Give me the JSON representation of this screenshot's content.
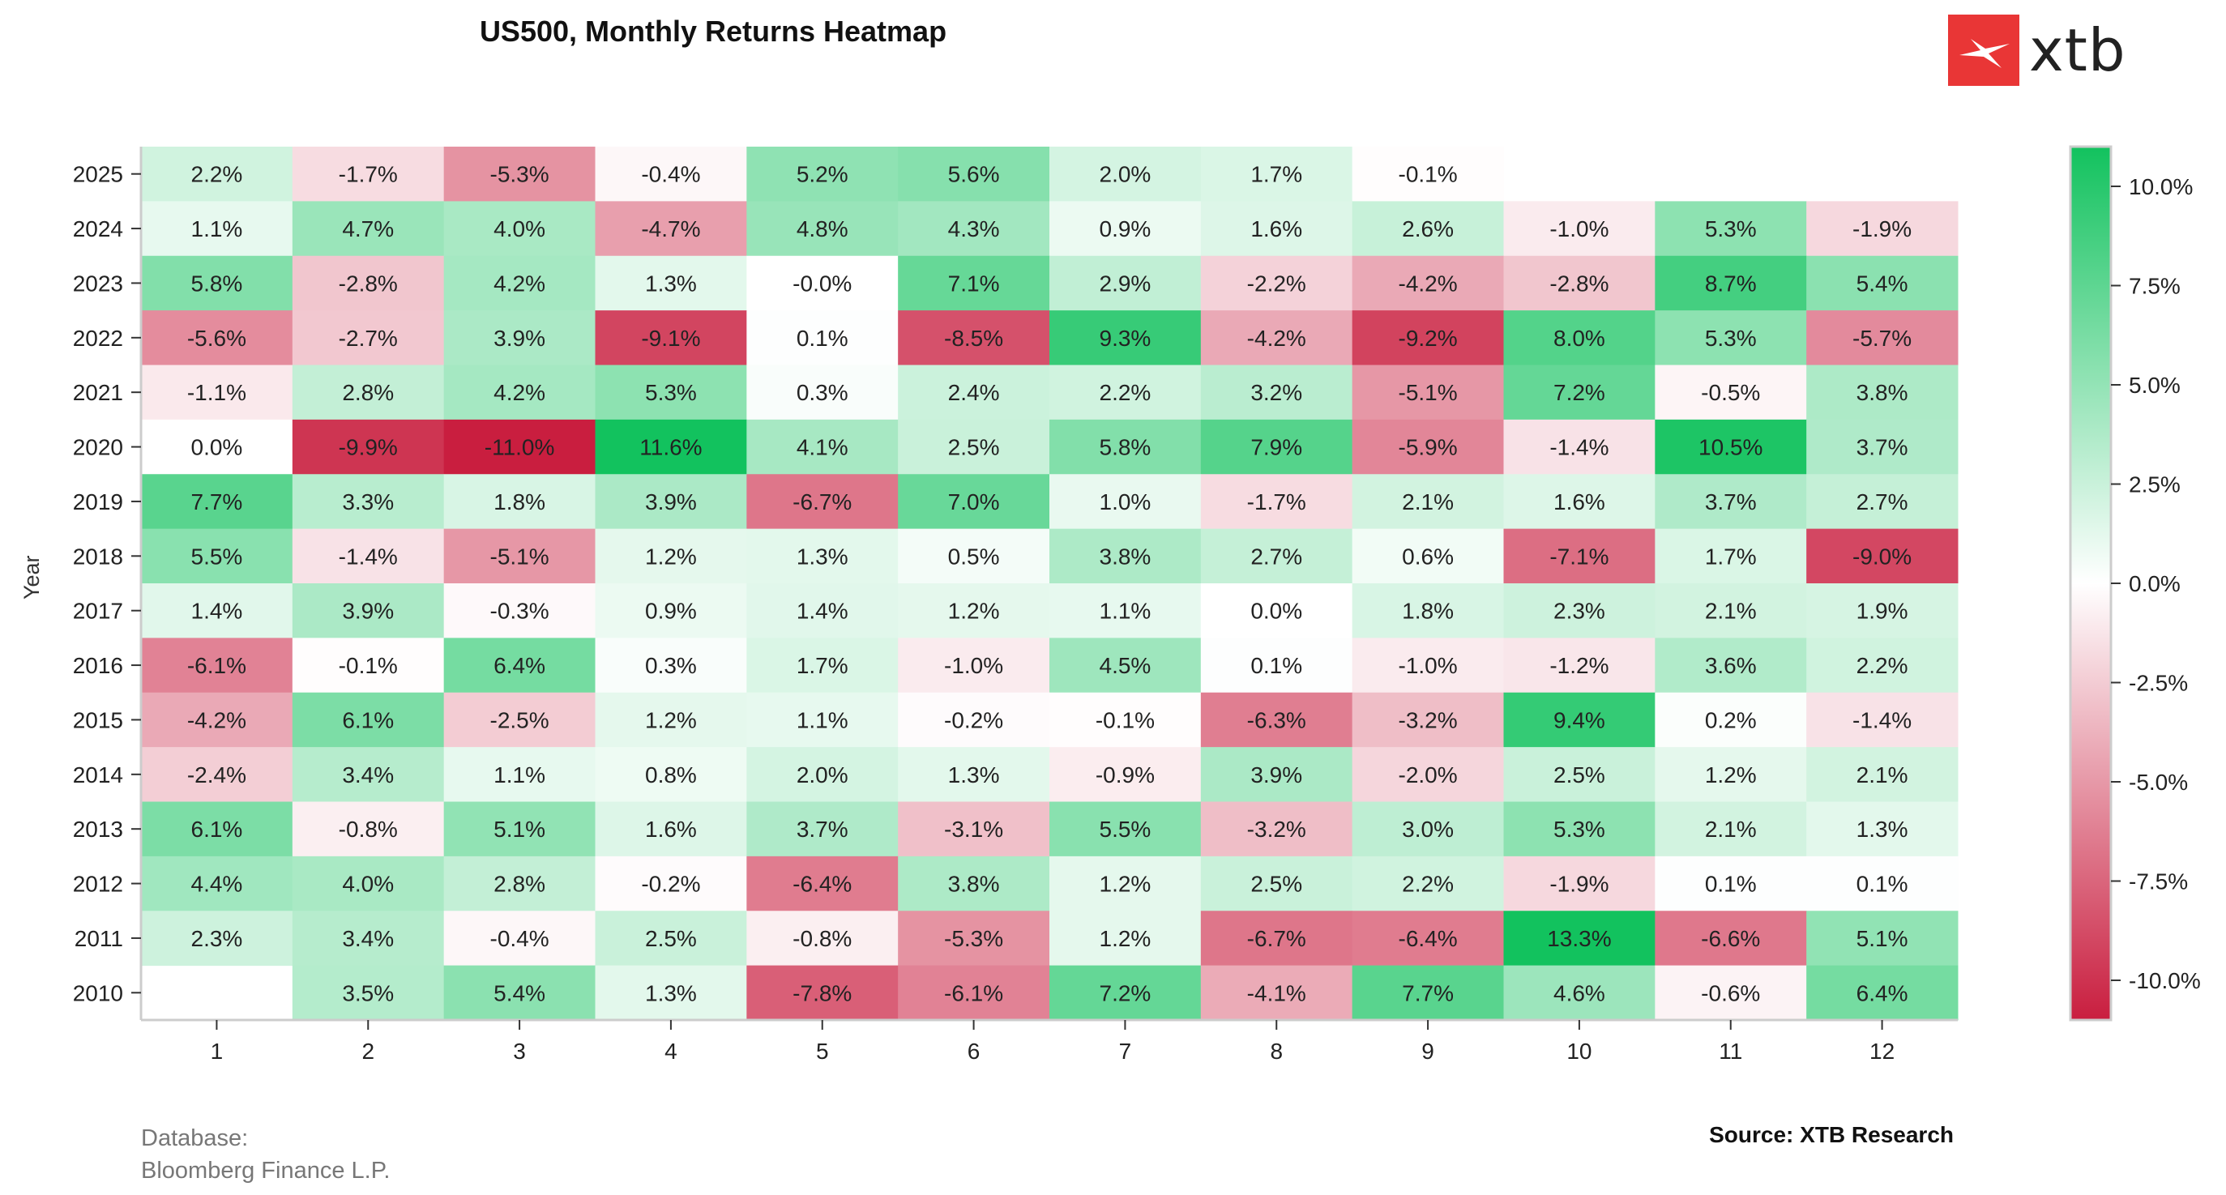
{
  "header": {
    "brand": "xtb"
  },
  "footer": {
    "database_label": "Database:",
    "database_value": "Bloomberg Finance L.P.",
    "source": "Source: XTB Research"
  },
  "colors": {
    "positive": "#12c25e",
    "neutral": "#ffffff",
    "negative": "#c91e3f",
    "axis": "#cccccc"
  },
  "chart_data": {
    "type": "heatmap",
    "title": "US500, Monthly Returns Heatmap",
    "xlabel": "",
    "ylabel": "Year",
    "x": [
      "1",
      "2",
      "3",
      "4",
      "5",
      "6",
      "7",
      "8",
      "9",
      "10",
      "11",
      "12"
    ],
    "y": [
      "2025",
      "2024",
      "2023",
      "2022",
      "2021",
      "2020",
      "2019",
      "2018",
      "2017",
      "2016",
      "2015",
      "2014",
      "2013",
      "2012",
      "2011",
      "2010"
    ],
    "values": [
      [
        2.2,
        -1.7,
        -5.3,
        -0.4,
        5.2,
        5.6,
        2.0,
        1.7,
        -0.1,
        null,
        null,
        null
      ],
      [
        1.1,
        4.7,
        4.0,
        -4.7,
        4.8,
        4.3,
        0.9,
        1.6,
        2.6,
        -1.0,
        5.3,
        -1.9
      ],
      [
        5.8,
        -2.8,
        4.2,
        1.3,
        -0.0,
        7.1,
        2.9,
        -2.2,
        -4.2,
        -2.8,
        8.7,
        5.4
      ],
      [
        -5.6,
        -2.7,
        3.9,
        -9.1,
        0.1,
        -8.5,
        9.3,
        -4.2,
        -9.2,
        8.0,
        5.3,
        -5.7
      ],
      [
        -1.1,
        2.8,
        4.2,
        5.3,
        0.3,
        2.4,
        2.2,
        3.2,
        -5.1,
        7.2,
        -0.5,
        3.8
      ],
      [
        0.0,
        -9.9,
        -11.0,
        11.6,
        4.1,
        2.5,
        5.8,
        7.9,
        -5.9,
        -1.4,
        10.5,
        3.7
      ],
      [
        7.7,
        3.3,
        1.8,
        3.9,
        -6.7,
        7.0,
        1.0,
        -1.7,
        2.1,
        1.6,
        3.7,
        2.7
      ],
      [
        5.5,
        -1.4,
        -5.1,
        1.2,
        1.3,
        0.5,
        3.8,
        2.7,
        0.6,
        -7.1,
        1.7,
        -9.0
      ],
      [
        1.4,
        3.9,
        -0.3,
        0.9,
        1.4,
        1.2,
        1.1,
        0.0,
        1.8,
        2.3,
        2.1,
        1.9
      ],
      [
        -6.1,
        -0.1,
        6.4,
        0.3,
        1.7,
        -1.0,
        4.5,
        0.1,
        -1.0,
        -1.2,
        3.6,
        2.2
      ],
      [
        -4.2,
        6.1,
        -2.5,
        1.2,
        1.1,
        -0.2,
        -0.1,
        -6.3,
        -3.2,
        9.4,
        0.2,
        -1.4
      ],
      [
        -2.4,
        3.4,
        1.1,
        0.8,
        2.0,
        1.3,
        -0.9,
        3.9,
        -2.0,
        2.5,
        1.2,
        2.1
      ],
      [
        6.1,
        -0.8,
        5.1,
        1.6,
        3.7,
        -3.1,
        5.5,
        -3.2,
        3.0,
        5.3,
        2.1,
        1.3
      ],
      [
        4.4,
        4.0,
        2.8,
        -0.2,
        -6.4,
        3.8,
        1.2,
        2.5,
        2.2,
        -1.9,
        0.1,
        0.1
      ],
      [
        2.3,
        3.4,
        -0.4,
        2.5,
        -0.8,
        -5.3,
        1.2,
        -6.7,
        -6.4,
        13.3,
        -6.6,
        5.1
      ],
      [
        null,
        3.5,
        5.4,
        1.3,
        -7.8,
        -6.1,
        7.2,
        -4.1,
        7.7,
        4.6,
        -0.6,
        6.4
      ]
    ],
    "value_format": "percent_1dp",
    "color_scale": {
      "min": -11.0,
      "max": 11.0,
      "colors": [
        "#c91e3f",
        "#ffffff",
        "#12c25e"
      ]
    },
    "colorbar_ticks": [
      "10.0%",
      "7.5%",
      "5.0%",
      "2.5%",
      "0.0%",
      "-2.5%",
      "-5.0%",
      "-7.5%",
      "-10.0%"
    ],
    "colorbar_tick_values": [
      10.0,
      7.5,
      5.0,
      2.5,
      0.0,
      -2.5,
      -5.0,
      -7.5,
      -10.0
    ],
    "legend": "colorbar-right"
  }
}
